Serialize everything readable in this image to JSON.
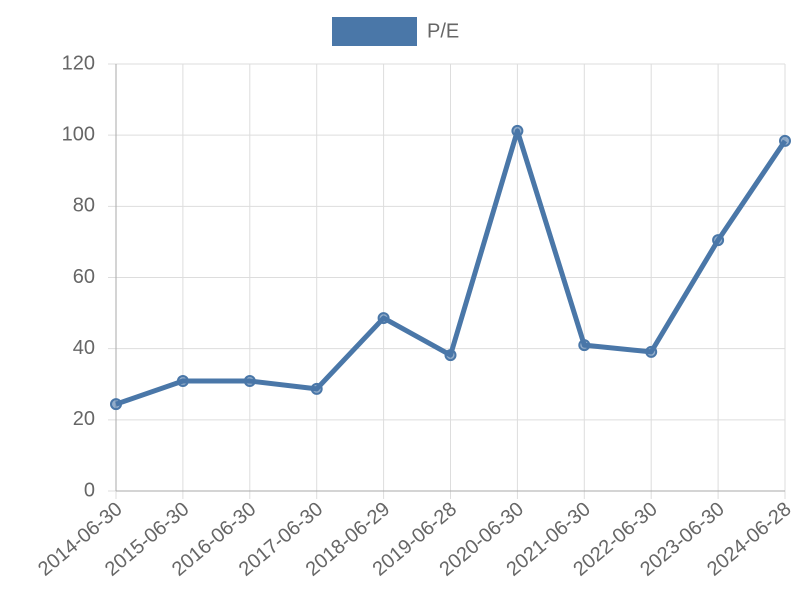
{
  "chart_data": {
    "type": "line",
    "categories": [
      "2014-06-30",
      "2015-06-30",
      "2016-06-30",
      "2017-06-30",
      "2018-06-29",
      "2019-06-28",
      "2020-06-30",
      "2021-06-30",
      "2022-06-30",
      "2023-06-30",
      "2024-06-28"
    ],
    "series": [
      {
        "name": "P/E",
        "color": "#4a77a8",
        "values": [
          24.4,
          30.9,
          30.9,
          28.7,
          48.6,
          38.2,
          101.2,
          41.0,
          39.1,
          70.5,
          98.4
        ]
      }
    ],
    "ylim": [
      0,
      120
    ],
    "yticks": [
      0,
      20,
      40,
      60,
      80,
      100,
      120
    ],
    "grid": true,
    "legend": "top"
  }
}
